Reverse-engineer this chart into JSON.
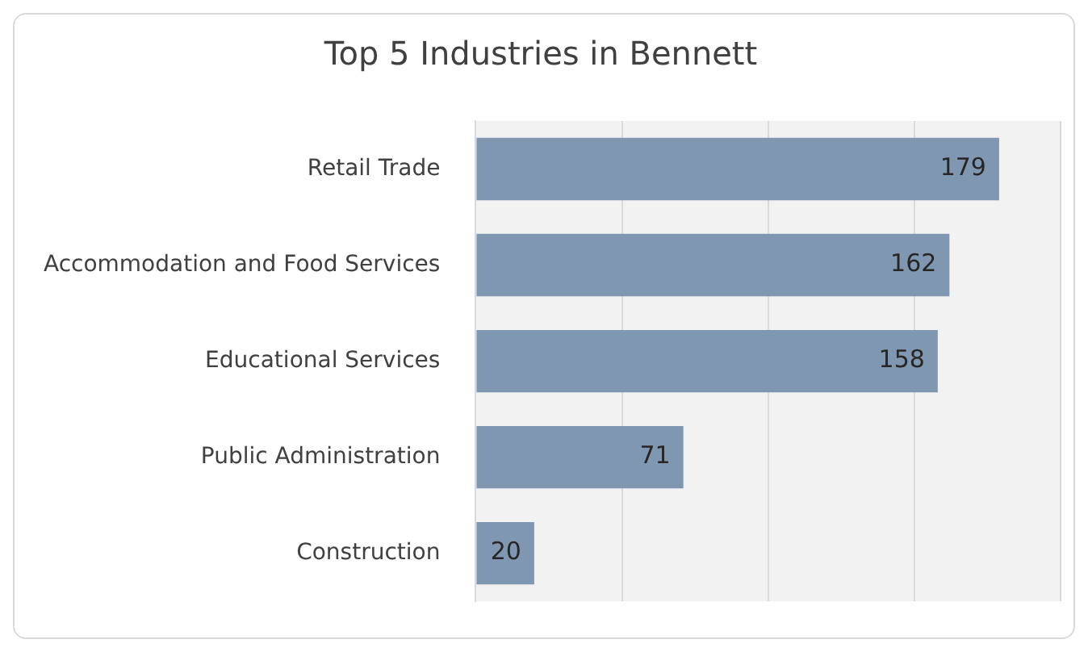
{
  "chart_data": {
    "type": "bar",
    "orientation": "horizontal",
    "title": "Top 5 Industries in Bennett",
    "categories": [
      "Retail Trade",
      "Accommodation and Food Services",
      "Educational Services",
      "Public Administration",
      "Construction"
    ],
    "values": [
      179,
      162,
      158,
      71,
      20
    ],
    "color": "#8097b1",
    "xlim": [
      0,
      200
    ],
    "xticks": [
      {
        "value": 0,
        "label": null
      },
      {
        "value": 50,
        "label": null
      },
      {
        "value": 100,
        "label": null
      },
      {
        "value": 150,
        "label": null
      },
      {
        "value": 200,
        "label": null
      }
    ],
    "grid": "x",
    "tick_labels": "y",
    "data_labels": true,
    "legend": false
  }
}
